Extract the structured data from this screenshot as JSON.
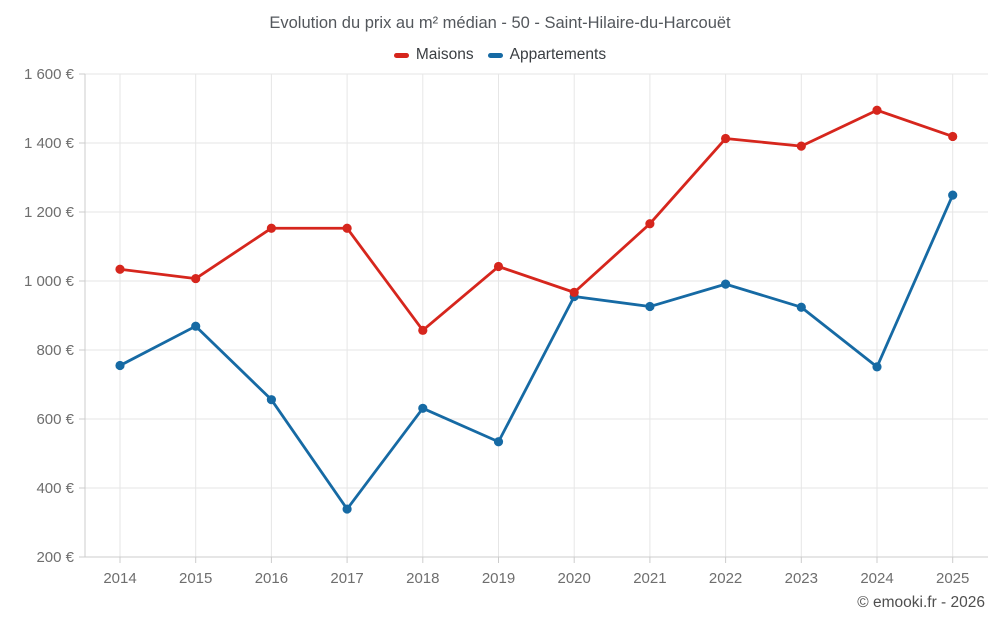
{
  "footer": {
    "credit": "© emooki.fr - 2026"
  },
  "chart_data": {
    "type": "line",
    "title": "Evolution du prix au m² médian - 50 - Saint-Hilaire-du-Harcouët",
    "x": [
      2014,
      2015,
      2016,
      2017,
      2018,
      2019,
      2020,
      2021,
      2022,
      2023,
      2024,
      2025
    ],
    "series": [
      {
        "name": "Maisons",
        "color": "#d6261d",
        "values": [
          1034,
          1007,
          1153,
          1153,
          857,
          1042,
          967,
          1166,
          1413,
          1391,
          1495,
          1419
        ]
      },
      {
        "name": "Appartements",
        "color": "#166aa4",
        "values": [
          755,
          869,
          656,
          339,
          631,
          534,
          955,
          926,
          991,
          924,
          751,
          1249
        ]
      }
    ],
    "xlabel": "",
    "ylabel": "",
    "ylim": [
      200,
      1600
    ],
    "ytick_step": 200,
    "y_tick_format": "{value} €",
    "grid": true,
    "legend_position": "top",
    "colors": {
      "gridline": "#e6e6e6",
      "axis_line": "#cccccc",
      "tick_label": "#6e6e6e",
      "title_text": "#53575c",
      "legend_text": "#3a3e42"
    }
  }
}
